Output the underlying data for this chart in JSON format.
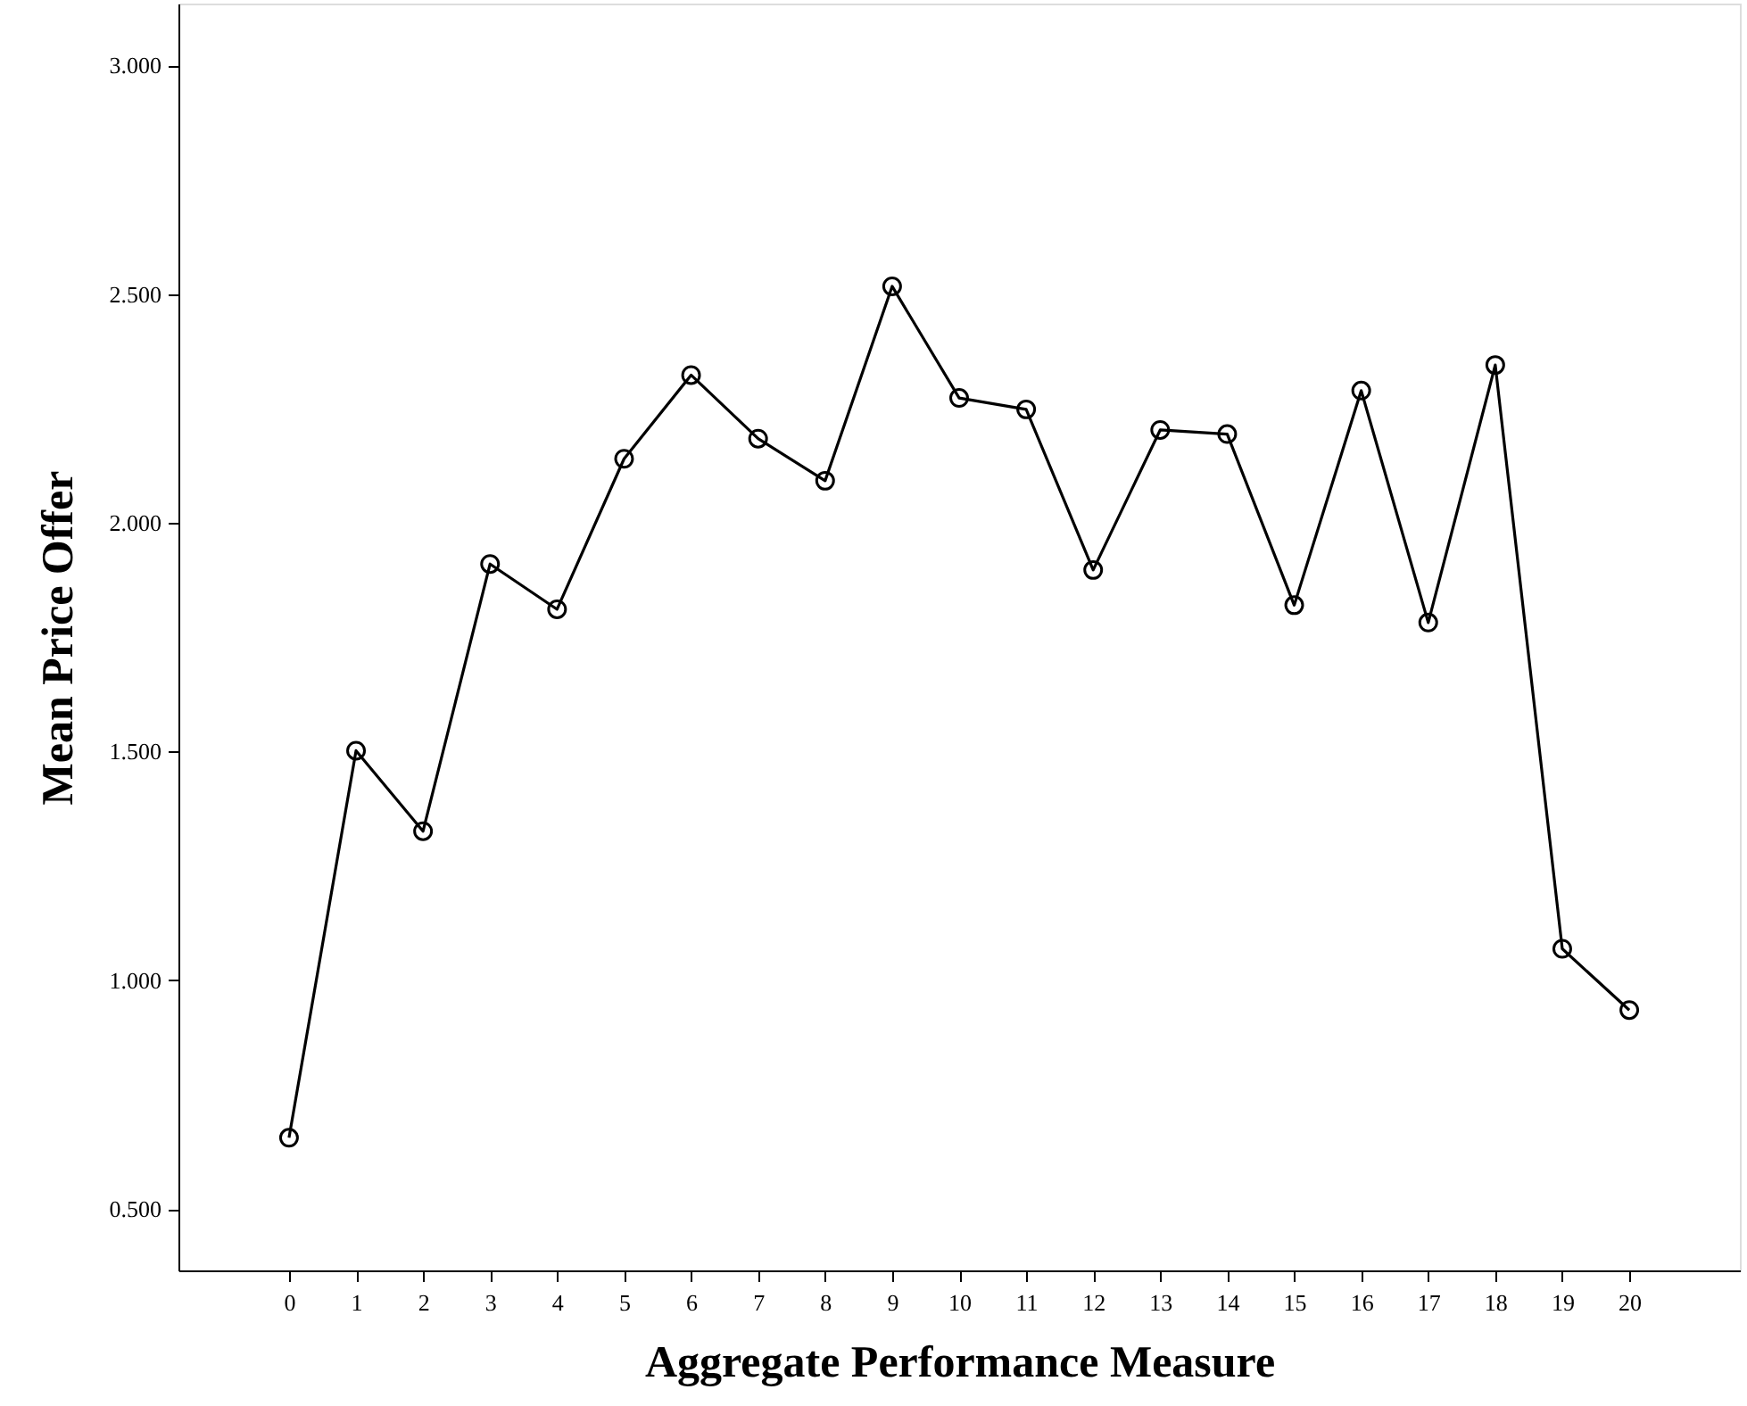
{
  "chart_data": {
    "type": "line",
    "xlabel": "Aggregate Performance Measure",
    "ylabel": "Mean Price Offer",
    "x": [
      0,
      1,
      2,
      3,
      4,
      5,
      6,
      7,
      8,
      9,
      10,
      11,
      12,
      13,
      14,
      15,
      16,
      17,
      18,
      19,
      20
    ],
    "series": [
      {
        "color": "#000000",
        "values": [
          0.656,
          1.502,
          1.326,
          1.91,
          1.811,
          2.14,
          2.323,
          2.184,
          2.092,
          2.517,
          2.273,
          2.248,
          1.897,
          2.203,
          2.194,
          1.82,
          2.289,
          1.782,
          2.345,
          1.069,
          0.935
        ]
      }
    ],
    "xlim": [
      -1.65,
      21.65
    ],
    "xticks": [
      0,
      1,
      2,
      3,
      4,
      5,
      6,
      7,
      8,
      9,
      10,
      11,
      12,
      13,
      14,
      15,
      16,
      17,
      18,
      19,
      20
    ],
    "ylim": [
      0.366,
      3.135
    ],
    "yticks": [
      {
        "value": 0.5,
        "label": "0.500"
      },
      {
        "value": 1.0,
        "label": "1.000"
      },
      {
        "value": 1.5,
        "label": "1.500"
      },
      {
        "value": 2.0,
        "label": "2.000"
      },
      {
        "value": 2.5,
        "label": "2.500"
      },
      {
        "value": 3.0,
        "label": "3.000"
      }
    ],
    "marker": "circle",
    "line_style": "solid"
  }
}
